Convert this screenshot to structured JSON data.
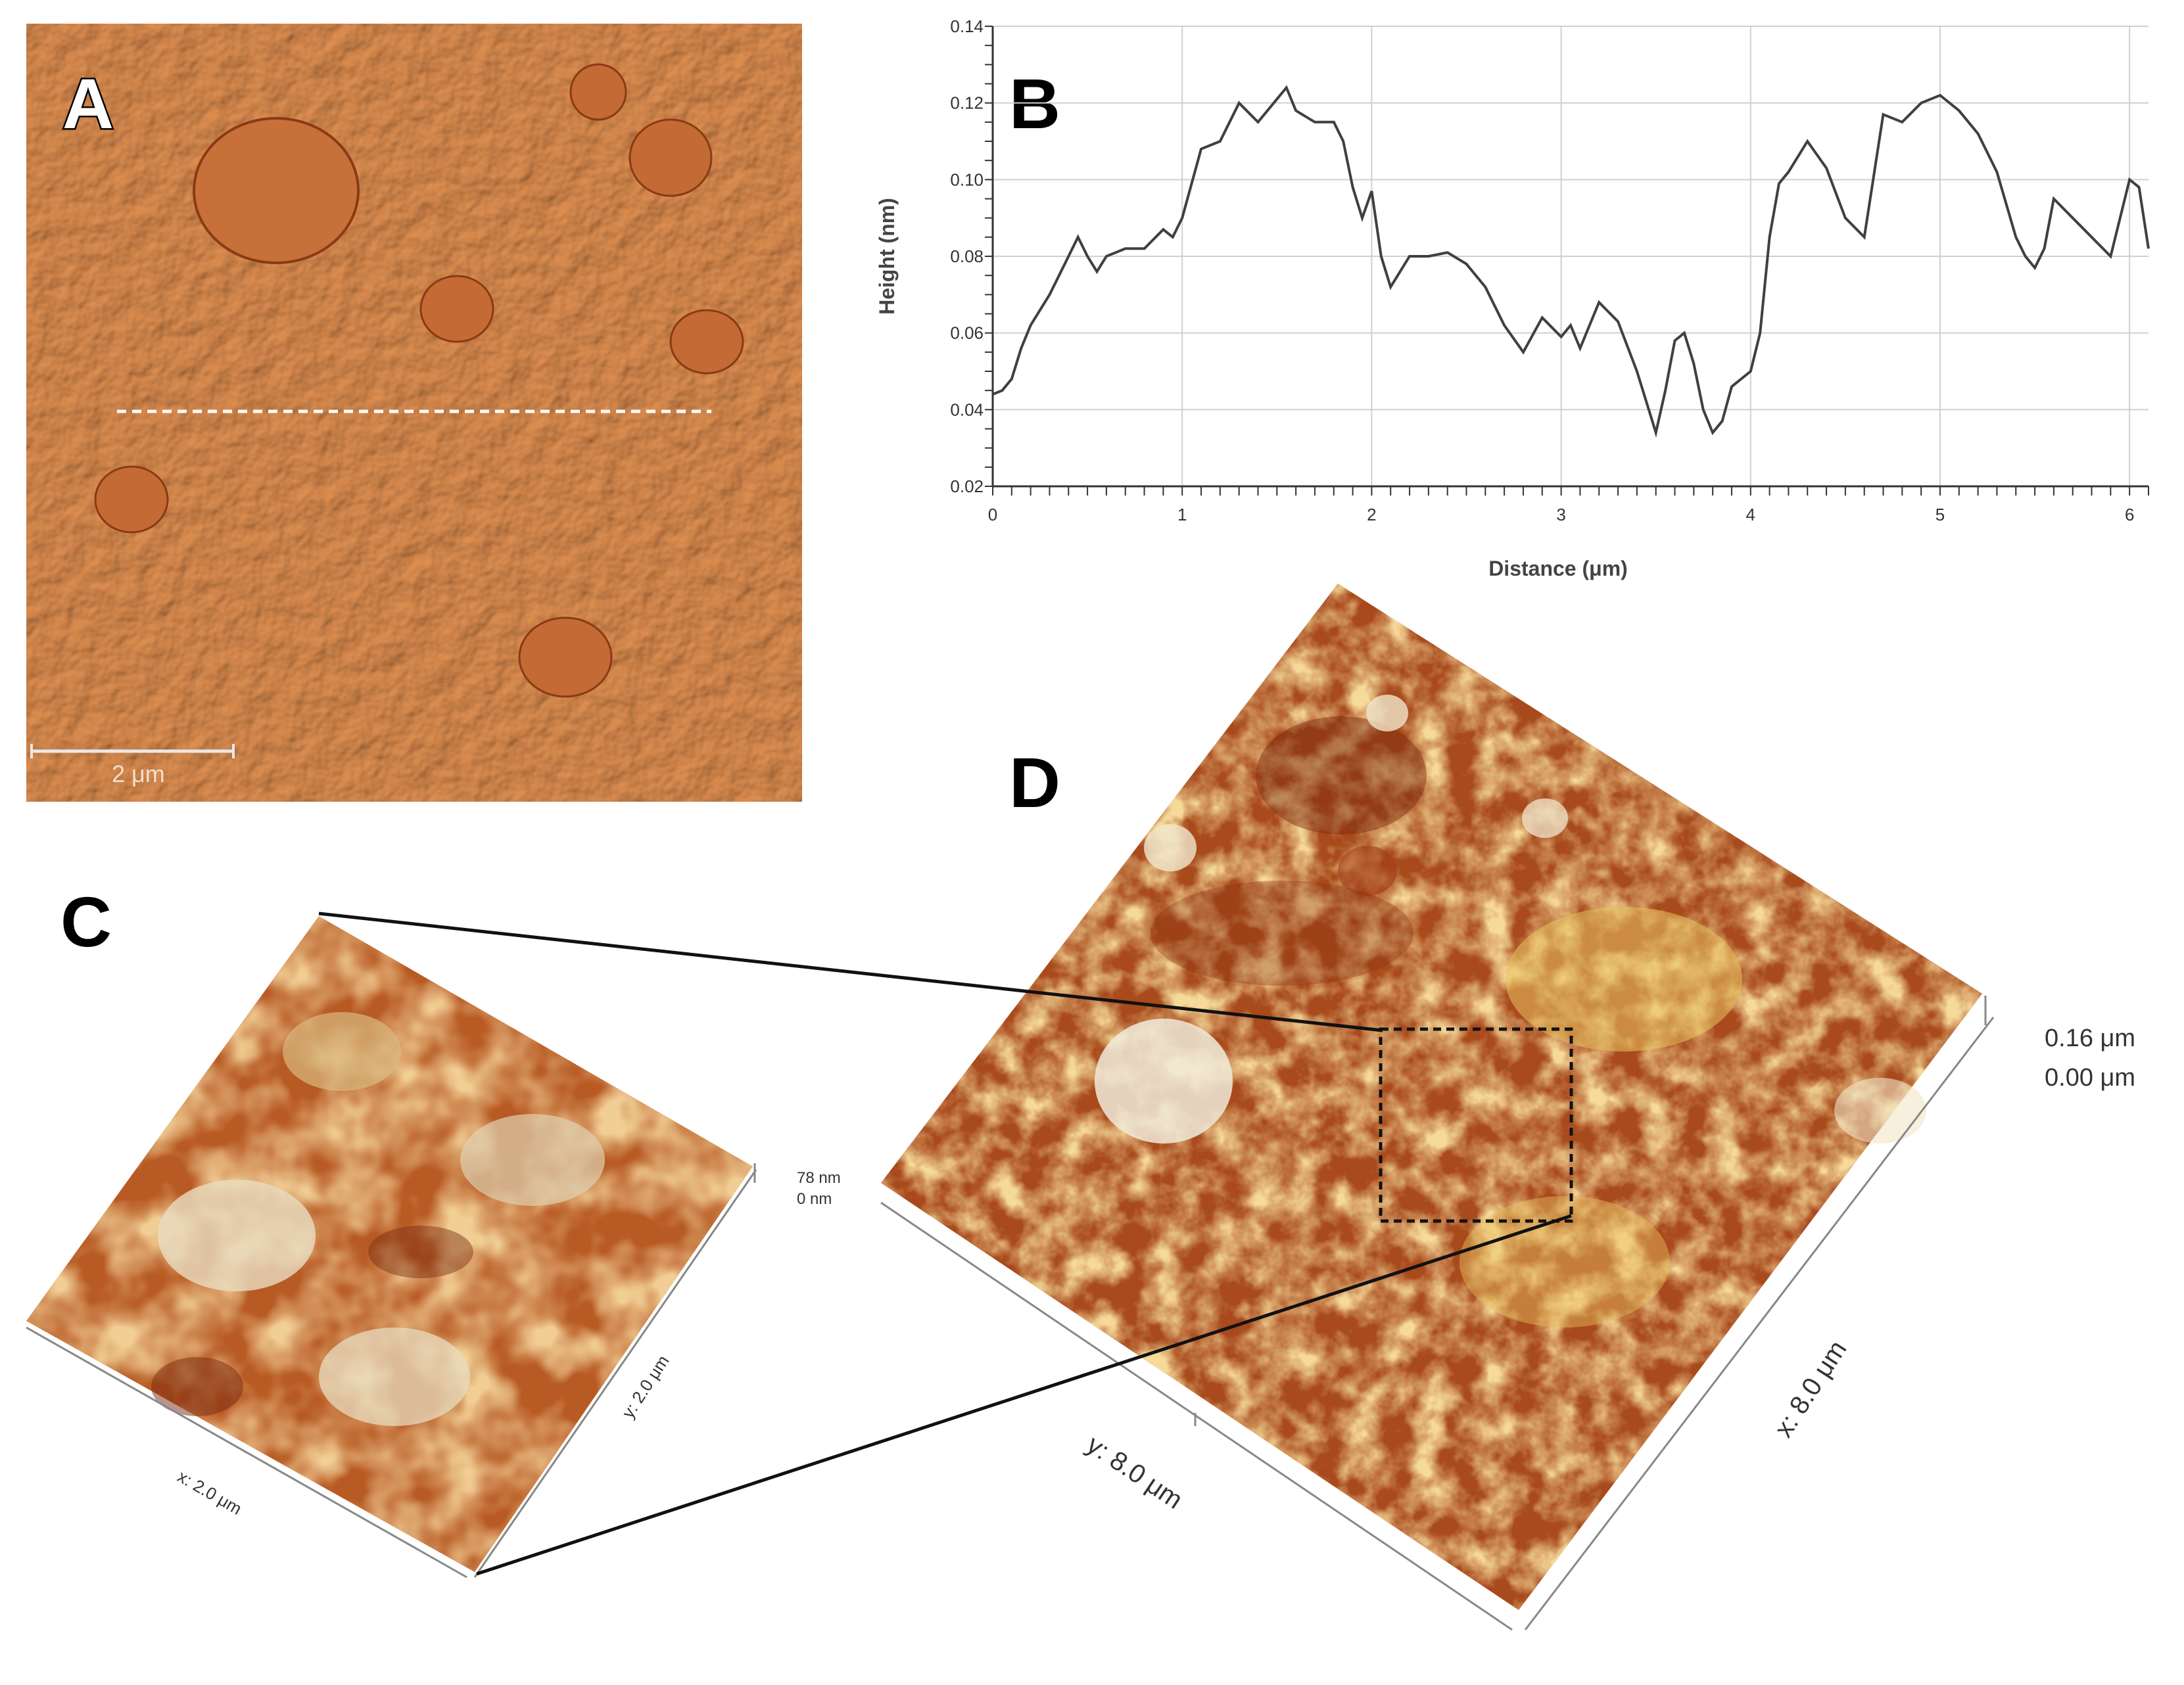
{
  "panels": {
    "a": {
      "letter": "A",
      "scalebar_label": "2 μm"
    },
    "b": {
      "letter": "B"
    },
    "c": {
      "letter": "C",
      "z_top": "78 nm",
      "z_bottom": "0 nm",
      "x_axis": "x: 2.0 μm",
      "y_axis": "y: 2.0 μm"
    },
    "d": {
      "letter": "D",
      "z_top": "0.16 μm",
      "z_bottom": "0.00 μm",
      "x_axis": "x: 8.0 μm",
      "y_axis": "y: 8.0 μm"
    }
  },
  "colors": {
    "afm_orange": "#c0642a",
    "afm_dark": "#7a2a10",
    "afm_gold": "#e3b04a",
    "afm_highlight": "#f2e6c8",
    "grid": "#d0d0d0",
    "line": "#404040"
  },
  "chart_data": {
    "type": "line",
    "xlabel": "Distance (μm)",
    "ylabel": "Height (nm)",
    "xlim": [
      0,
      6.1
    ],
    "ylim": [
      0.02,
      0.14
    ],
    "xticks": [
      "0",
      "1",
      "2",
      "3",
      "4",
      "5",
      "6"
    ],
    "yticks": [
      "0.02",
      "0.04",
      "0.06",
      "0.08",
      "0.10",
      "0.12",
      "0.14"
    ],
    "grid": true,
    "series": [
      {
        "x": [
          0,
          0.05,
          0.1,
          0.15,
          0.2,
          0.3,
          0.4,
          0.45,
          0.5,
          0.55,
          0.6,
          0.7,
          0.8,
          0.9,
          0.95,
          1.0,
          1.1,
          1.2,
          1.3,
          1.4,
          1.5,
          1.55,
          1.6,
          1.7,
          1.8,
          1.85,
          1.9,
          1.95,
          2.0,
          2.05,
          2.1,
          2.2,
          2.3,
          2.4,
          2.5,
          2.6,
          2.7,
          2.8,
          2.9,
          3.0,
          3.05,
          3.1,
          3.2,
          3.3,
          3.4,
          3.45,
          3.5,
          3.55,
          3.6,
          3.65,
          3.7,
          3.75,
          3.8,
          3.85,
          3.9,
          4.0,
          4.05,
          4.1,
          4.15,
          4.2,
          4.3,
          4.4,
          4.5,
          4.6,
          4.7,
          4.8,
          4.9,
          5.0,
          5.1,
          5.2,
          5.3,
          5.4,
          5.45,
          5.5,
          5.55,
          5.6,
          5.7,
          5.8,
          5.9,
          6.0,
          6.05,
          6.1
        ],
        "y": [
          0.044,
          0.045,
          0.048,
          0.056,
          0.062,
          0.07,
          0.08,
          0.085,
          0.08,
          0.076,
          0.08,
          0.082,
          0.082,
          0.087,
          0.085,
          0.09,
          0.108,
          0.11,
          0.12,
          0.115,
          0.121,
          0.124,
          0.118,
          0.115,
          0.115,
          0.11,
          0.098,
          0.09,
          0.097,
          0.08,
          0.072,
          0.08,
          0.08,
          0.081,
          0.078,
          0.072,
          0.062,
          0.055,
          0.064,
          0.059,
          0.062,
          0.056,
          0.068,
          0.063,
          0.05,
          0.042,
          0.034,
          0.045,
          0.058,
          0.06,
          0.052,
          0.04,
          0.034,
          0.037,
          0.046,
          0.05,
          0.06,
          0.085,
          0.099,
          0.102,
          0.11,
          0.103,
          0.09,
          0.085,
          0.117,
          0.115,
          0.12,
          0.122,
          0.118,
          0.112,
          0.102,
          0.085,
          0.08,
          0.077,
          0.082,
          0.095,
          0.09,
          0.085,
          0.08,
          0.1,
          0.098,
          0.082
        ]
      }
    ]
  }
}
